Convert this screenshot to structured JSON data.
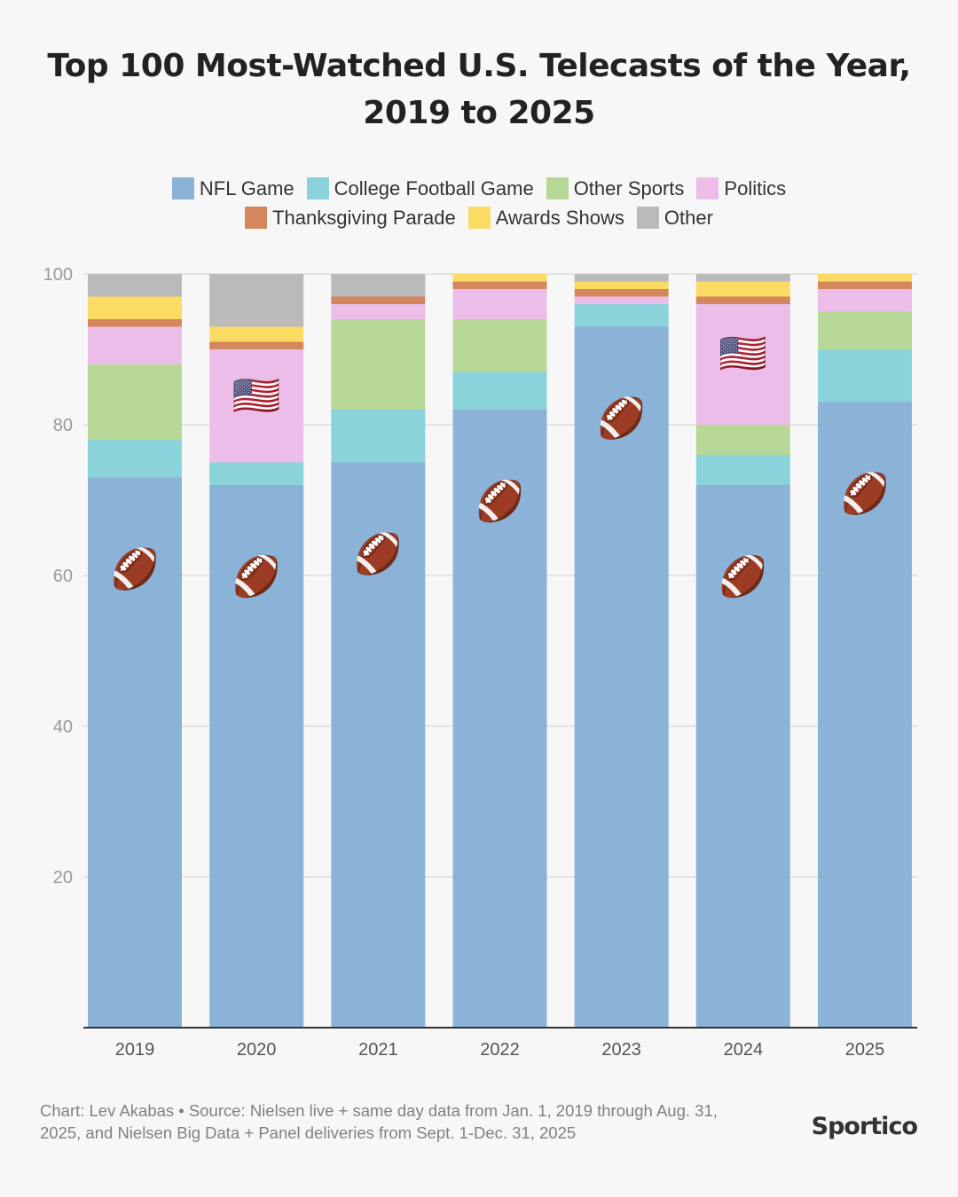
{
  "title_line1": "Top 100 Most-Watched U.S. Telecasts of the Year,",
  "title_line2": "2019 to 2025",
  "footer_line1": "Chart: Lev Akabas • Source: Nielsen live + same day data from Jan. 1, 2019 through Aug. 31,",
  "footer_line2": "2025, and Nielsen Big Data + Panel deliveries from Sept. 1-Dec. 31, 2025",
  "brand": "Sportico",
  "chart_data": {
    "type": "bar",
    "stacked": true,
    "title": "Top 100 Most-Watched U.S. Telecasts of the Year, 2019 to 2025",
    "xlabel": "",
    "ylabel": "",
    "ylim": [
      0,
      100
    ],
    "yticks": [
      20,
      40,
      60,
      80,
      100
    ],
    "grid": true,
    "legend_position": "top",
    "categories": [
      "2019",
      "2020",
      "2021",
      "2022",
      "2023",
      "2024",
      "2025"
    ],
    "series": [
      {
        "name": "NFL Game",
        "color": "#8ab3d7",
        "values": [
          73,
          72,
          75,
          82,
          93,
          72,
          83
        ]
      },
      {
        "name": "College Football Game",
        "color": "#8bd3db",
        "values": [
          5,
          3,
          7,
          5,
          3,
          4,
          7
        ]
      },
      {
        "name": "Other Sports",
        "color": "#b8d898",
        "values": [
          10,
          0,
          12,
          7,
          0,
          4,
          5
        ]
      },
      {
        "name": "Politics",
        "color": "#edbde9",
        "values": [
          5,
          15,
          2,
          4,
          1,
          16,
          3
        ]
      },
      {
        "name": "Thanksgiving Parade",
        "color": "#d4875c",
        "values": [
          1,
          1,
          1,
          1,
          1,
          1,
          1
        ]
      },
      {
        "name": "Awards Shows",
        "color": "#fcdb65",
        "values": [
          3,
          2,
          0,
          1,
          1,
          2,
          1
        ]
      },
      {
        "name": "Other",
        "color": "#bababa",
        "values": [
          3,
          7,
          3,
          0,
          1,
          1,
          0
        ]
      }
    ],
    "annotations": [
      {
        "category": "2019",
        "series": "NFL Game",
        "icon": "american-football-emoji"
      },
      {
        "category": "2020",
        "series": "NFL Game",
        "icon": "american-football-emoji"
      },
      {
        "category": "2020",
        "series": "Politics",
        "icon": "us-flag-emoji"
      },
      {
        "category": "2021",
        "series": "NFL Game",
        "icon": "american-football-emoji"
      },
      {
        "category": "2022",
        "series": "NFL Game",
        "icon": "american-football-emoji"
      },
      {
        "category": "2023",
        "series": "NFL Game",
        "icon": "american-football-emoji"
      },
      {
        "category": "2024",
        "series": "NFL Game",
        "icon": "american-football-emoji"
      },
      {
        "category": "2024",
        "series": "Politics",
        "icon": "us-flag-emoji"
      },
      {
        "category": "2025",
        "series": "NFL Game",
        "icon": "american-football-emoji"
      }
    ]
  }
}
